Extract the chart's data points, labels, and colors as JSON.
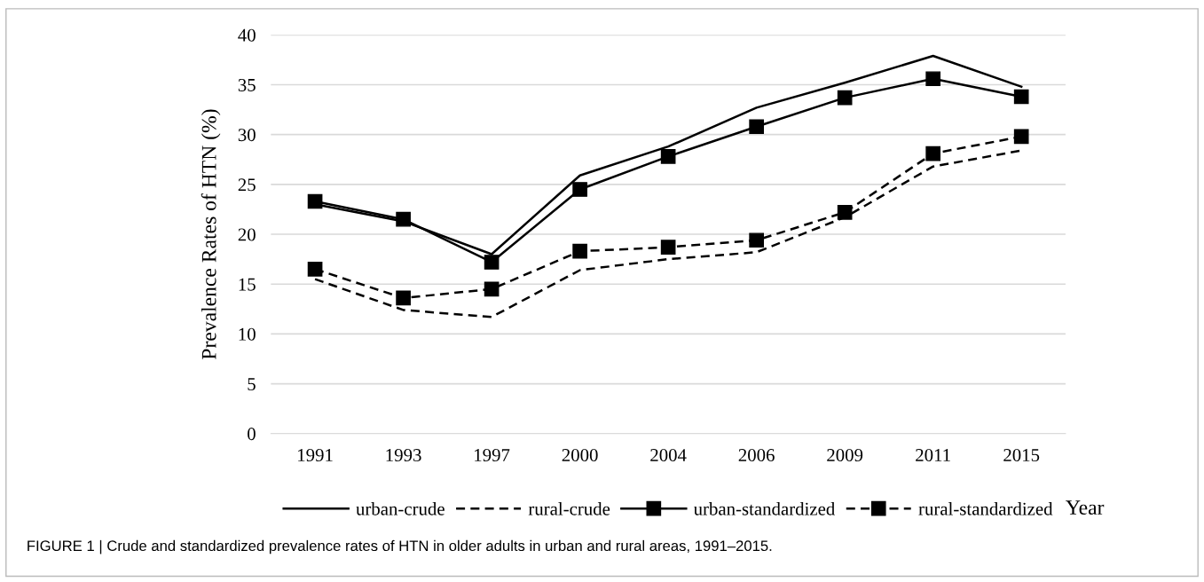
{
  "chart_data": {
    "type": "line",
    "ylabel": "Prevalence Rates of HTN (%)",
    "xlabel": "Year",
    "categories": [
      "1991",
      "1993",
      "1997",
      "2000",
      "2004",
      "2006",
      "2009",
      "2011",
      "2015"
    ],
    "series": [
      {
        "name": "urban-crude",
        "color": "#000000",
        "line_style": "solid",
        "marker": "none",
        "values": [
          23.0,
          21.3,
          18.0,
          25.9,
          28.8,
          32.7,
          35.2,
          37.9,
          34.8
        ]
      },
      {
        "name": "rural-crude",
        "color": "#000000",
        "line_style": "dashed",
        "marker": "none",
        "values": [
          15.5,
          12.4,
          11.7,
          16.4,
          17.5,
          18.2,
          21.7,
          26.8,
          28.4
        ]
      },
      {
        "name": "urban-standardized",
        "color": "#000000",
        "line_style": "solid",
        "marker": "square",
        "values": [
          23.3,
          21.5,
          17.2,
          24.5,
          27.8,
          30.8,
          33.7,
          35.6,
          33.8
        ]
      },
      {
        "name": "rural-standardized",
        "color": "#000000",
        "line_style": "dashed",
        "marker": "square",
        "values": [
          16.5,
          13.6,
          14.5,
          18.3,
          18.7,
          19.4,
          22.2,
          28.1,
          29.8
        ]
      }
    ],
    "ylim": [
      0,
      40
    ],
    "yticks": [
      0,
      5,
      10,
      15,
      20,
      25,
      30,
      35,
      40
    ],
    "grid": "y",
    "legend": "bottom",
    "annotations": [
      "FIGURE 1 | Crude and standardized prevalence rates of HTN in older adults in urban and rural areas, 1991–2015."
    ]
  }
}
